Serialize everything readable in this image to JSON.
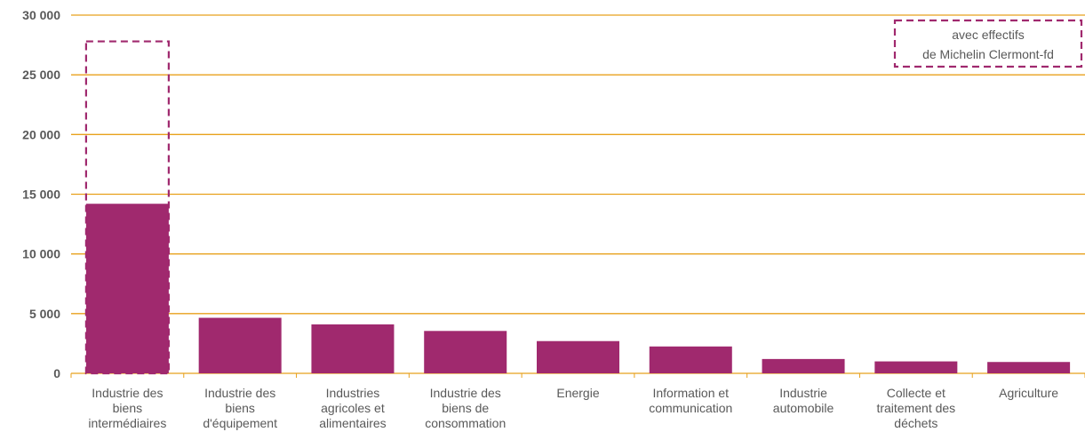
{
  "colors": {
    "bar": "#A0296E",
    "grid": "#E8A11C",
    "axis_text": "#595959",
    "dashed": "#A0296E"
  },
  "chart_data": {
    "type": "bar",
    "categories": [
      [
        "Industrie des",
        "biens",
        "intermédiaires"
      ],
      [
        "Industrie des",
        "biens",
        "d'équipement"
      ],
      [
        "Industries",
        "agricoles et",
        "alimentaires"
      ],
      [
        "Industrie des",
        "biens de",
        "consommation"
      ],
      [
        "Energie"
      ],
      [
        "Information et",
        "communication"
      ],
      [
        "Industrie",
        "automobile"
      ],
      [
        "Collecte et",
        "traitement des",
        "déchets"
      ],
      [
        "Agriculture"
      ]
    ],
    "values": [
      14200,
      4650,
      4100,
      3550,
      2700,
      2250,
      1200,
      1000,
      950
    ],
    "dashed_overlay": {
      "category_index": 0,
      "value": 27800
    },
    "ylim": [
      0,
      30000
    ],
    "yticks": [
      0,
      5000,
      10000,
      15000,
      20000,
      25000,
      30000
    ],
    "ytick_labels": [
      "0",
      "5 000",
      "10 000",
      "15 000",
      "20 000",
      "25 000",
      "30 000"
    ],
    "grid": true,
    "legend": {
      "placement": "top-right",
      "lines": [
        "avec  effectifs",
        "de Michelin Clermont-fd"
      ]
    }
  }
}
